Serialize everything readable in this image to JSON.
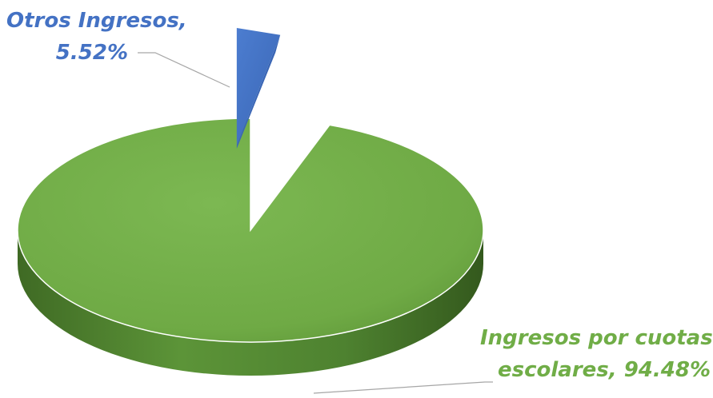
{
  "chart_data": {
    "type": "pie",
    "style": "3d-exploded",
    "title": "",
    "slices": [
      {
        "name": "Otros Ingresos",
        "value": 5.52,
        "label_line1": "Otros Ingresos,",
        "label_line2": "5.52%",
        "color": "#4472C4",
        "side_color": "#22385E"
      },
      {
        "name": "Ingresos por cuotas escolares",
        "value": 94.48,
        "label_line1": "Ingresos por cuotas",
        "label_line2": "escolares, 94.48%",
        "color": "#70AD47",
        "side_color": "#4A7A2C"
      }
    ],
    "legend": "none"
  }
}
